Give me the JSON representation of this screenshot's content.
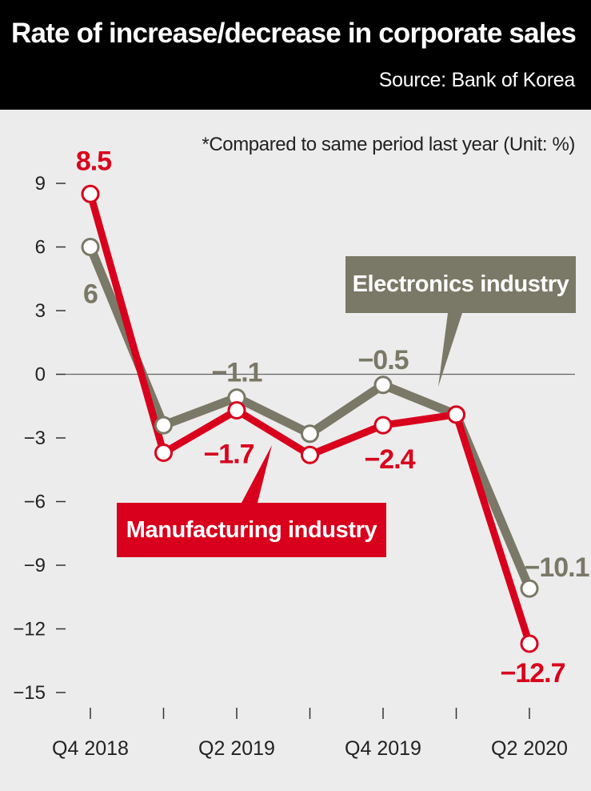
{
  "title": "Rate of increase/decrease in corporate sales",
  "source": "Source: Bank of Korea",
  "note": "*Compared to same period last year  (Unit: %)",
  "colors": {
    "header_bg": "#000000",
    "background": "#ececec",
    "electronics": "#7a7866",
    "manufacturing": "#d8001c"
  },
  "chart_data": {
    "type": "line",
    "title": "Rate of increase/decrease in corporate sales",
    "xlabel": "",
    "ylabel": "",
    "unit": "%",
    "ylim": [
      -15,
      9
    ],
    "yticks": [
      9,
      6,
      3,
      0,
      -3,
      -6,
      -9,
      -12,
      -15
    ],
    "ytick_labels": [
      "9",
      "6",
      "3",
      "0",
      "−3",
      "−6",
      "−9",
      "−12",
      "−15"
    ],
    "categories": [
      "Q4 2018",
      "Q1 2019",
      "Q2 2019",
      "Q3 2019",
      "Q4 2019",
      "Q1 2020",
      "Q2 2020"
    ],
    "category_labels": [
      "Q4 2018",
      "",
      "Q2 2019",
      "",
      "Q4 2019",
      "",
      "Q2 2020"
    ],
    "series": [
      {
        "name": "Electronics industry",
        "values": [
          6,
          -2.4,
          -1.1,
          -2.8,
          -0.5,
          -1.9,
          -10.1
        ],
        "labels": [
          "6",
          "",
          "−1.1",
          "",
          "−0.5",
          "",
          "−10.1"
        ]
      },
      {
        "name": "Manufacturing industry",
        "values": [
          8.5,
          -3.7,
          -1.7,
          -3.8,
          -2.4,
          -1.9,
          -12.7
        ],
        "labels": [
          "8.5",
          "",
          "−1.7",
          "",
          "−2.4",
          "",
          "−12.7"
        ]
      }
    ]
  }
}
